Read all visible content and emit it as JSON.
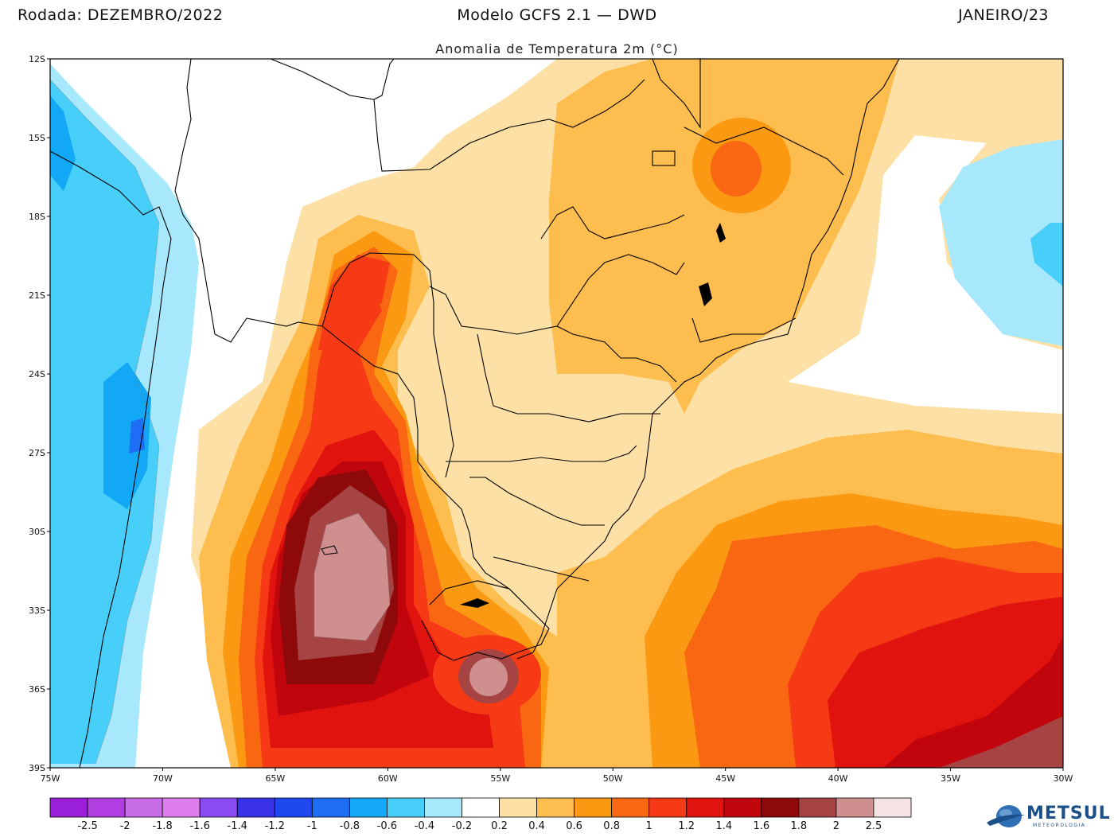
{
  "header": {
    "left": "Rodada: DEZEMBRO/2022",
    "center": "Modelo GCFS 2.1 — DWD",
    "right": "JANEIRO/23",
    "subtitle": "Anomalia de Temperatura 2m (°C)"
  },
  "map": {
    "lon_range": [
      -75,
      -30
    ],
    "lat_range": [
      -39,
      -12
    ],
    "lat_ticks": [
      "12S",
      "15S",
      "18S",
      "21S",
      "24S",
      "27S",
      "30S",
      "33S",
      "36S",
      "39S"
    ],
    "lon_ticks": [
      "75W",
      "70W",
      "65W",
      "60W",
      "55W",
      "50W",
      "45W",
      "40W",
      "35W",
      "30W"
    ]
  },
  "colorbar": {
    "labels": [
      "-2.5",
      "-2",
      "-1.8",
      "-1.6",
      "-1.4",
      "-1.2",
      "-1",
      "-0.8",
      "-0.6",
      "-0.4",
      "-0.2",
      "0.2",
      "0.4",
      "0.6",
      "0.8",
      "1",
      "1.2",
      "1.4",
      "1.6",
      "1.8",
      "2",
      "2.5"
    ],
    "colors": [
      "#9a1fd8",
      "#b13ee0",
      "#c96ce8",
      "#de7cf0",
      "#8a4bf2",
      "#3a32e8",
      "#1f48f0",
      "#1e6ef5",
      "#12a8f5",
      "#47cffa",
      "#a8e8fc",
      "#ffffff",
      "#fde0a5",
      "#fdbd4f",
      "#fb9912",
      "#fa6712",
      "#f53a15",
      "#e0130f",
      "#c0060c",
      "#8e0a0a",
      "#a64444",
      "#cf8f8f",
      "#f6e4e4"
    ]
  },
  "logo": {
    "text": "METSUL",
    "subtext": "METEOROLOGIA"
  }
}
